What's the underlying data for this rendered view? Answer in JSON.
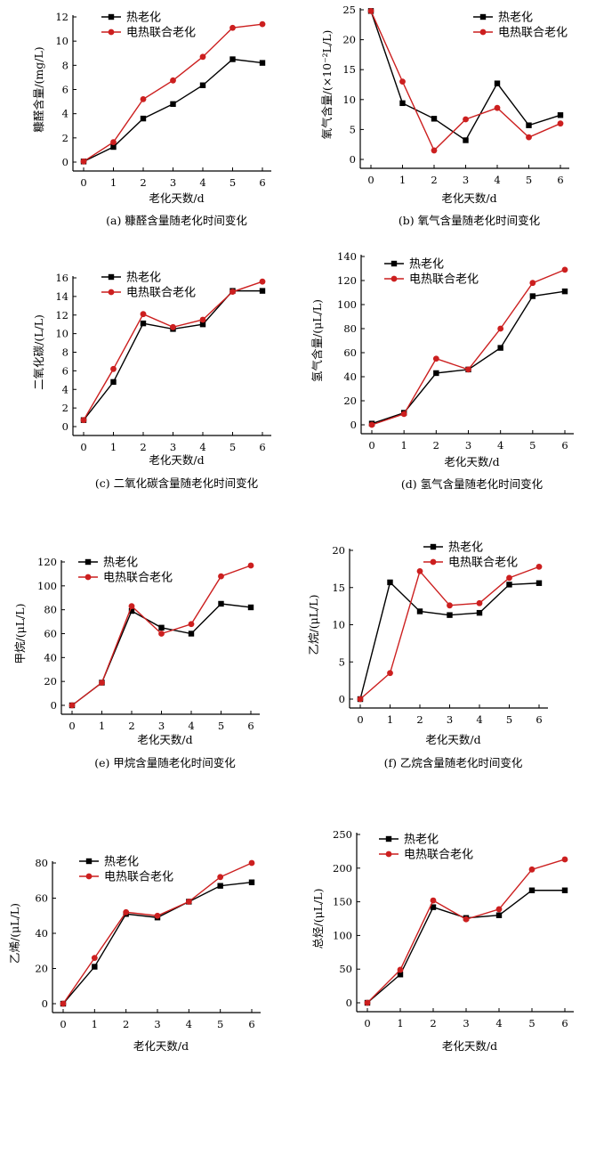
{
  "colors": {
    "heat": "#000000",
    "electro": "#cc1f1f"
  },
  "chart_data": [
    {
      "type": "line",
      "caption": "(a) 糠醛含量随老化时间变化",
      "xlabel": "老化天数/d",
      "ylabel": "糠醛含量/(mg/L)",
      "x": [
        0,
        1,
        2,
        3,
        4,
        5,
        6
      ],
      "xticks": [
        "0",
        "1",
        "2",
        "3",
        "4",
        "5",
        "6"
      ],
      "ylim": [
        0,
        12
      ],
      "yticks": [
        0,
        2,
        4,
        6,
        8,
        10,
        12
      ],
      "legend": "top-left",
      "series": [
        {
          "name": "热老化",
          "color": "#000000",
          "marker": "square",
          "values": [
            0.05,
            1.25,
            3.6,
            4.8,
            6.35,
            8.5,
            8.2
          ]
        },
        {
          "name": "电热联合老化",
          "color": "#cc1f1f",
          "marker": "circle",
          "values": [
            0.05,
            1.65,
            5.2,
            6.75,
            8.7,
            11.1,
            11.4
          ]
        }
      ]
    },
    {
      "type": "line",
      "caption": "(b) 氧气含量随老化时间变化",
      "xlabel": "老化天数/d",
      "ylabel": "氧气含量/(×10⁻²L/L)",
      "x": [
        0,
        1,
        2,
        3,
        4,
        5,
        6
      ],
      "xticks": [
        "0",
        "1",
        "2",
        "3",
        "4",
        "5",
        "6"
      ],
      "ylim": [
        0,
        25
      ],
      "yticks": [
        0,
        5,
        10,
        15,
        20,
        25
      ],
      "legend": "top-right",
      "series": [
        {
          "name": "热老化",
          "color": "#000000",
          "marker": "square",
          "values": [
            24.8,
            9.4,
            6.8,
            3.2,
            12.7,
            5.7,
            7.4
          ]
        },
        {
          "name": "电热联合老化",
          "color": "#cc1f1f",
          "marker": "circle",
          "values": [
            24.8,
            13.0,
            1.5,
            6.7,
            8.6,
            3.7,
            6.0
          ]
        }
      ]
    },
    {
      "type": "line",
      "caption": "(c) 二氧化碳含量随老化时间变化",
      "xlabel": "老化天数/d",
      "ylabel": "二氧化碳/(L/L)",
      "x": [
        0,
        1,
        2,
        3,
        4,
        5,
        6
      ],
      "xticks": [
        "0",
        "1",
        "2",
        "3",
        "4",
        "5",
        "6"
      ],
      "ylim": [
        0,
        16
      ],
      "yticks": [
        0,
        2,
        4,
        6,
        8,
        10,
        12,
        14,
        16
      ],
      "legend": "top-left",
      "series": [
        {
          "name": "热老化",
          "color": "#000000",
          "marker": "square",
          "values": [
            0.7,
            4.8,
            11.1,
            10.5,
            11.0,
            14.6,
            14.6
          ]
        },
        {
          "name": "电热联合老化",
          "color": "#cc1f1f",
          "marker": "circle",
          "values": [
            0.7,
            6.2,
            12.1,
            10.7,
            11.5,
            14.5,
            15.6
          ]
        }
      ]
    },
    {
      "type": "line",
      "caption": "(d) 氢气含量随老化时间变化",
      "xlabel": "老化天数/d",
      "ylabel": "氢气含量/(μL/L)",
      "x": [
        0,
        1,
        2,
        3,
        4,
        5,
        6
      ],
      "xticks": [
        "0",
        "1",
        "2",
        "3",
        "4",
        "5",
        "6"
      ],
      "ylim": [
        0,
        140
      ],
      "yticks": [
        0,
        20,
        40,
        60,
        80,
        100,
        120,
        140
      ],
      "legend": "top-left",
      "series": [
        {
          "name": "热老化",
          "color": "#000000",
          "marker": "square",
          "values": [
            1,
            10,
            43,
            46,
            64,
            107,
            111
          ]
        },
        {
          "name": "电热联合老化",
          "color": "#cc1f1f",
          "marker": "circle",
          "values": [
            0,
            9,
            55,
            46,
            80,
            118,
            129
          ]
        }
      ]
    },
    {
      "type": "line",
      "caption": "(e) 甲烷含量随老化时间变化",
      "xlabel": "老化天数/d",
      "ylabel": "甲烷/(μL/L)",
      "x": [
        0,
        1,
        2,
        3,
        4,
        5,
        6
      ],
      "xticks": [
        "0",
        "1",
        "2",
        "3",
        "4",
        "5",
        "6"
      ],
      "ylim": [
        0,
        120
      ],
      "yticks": [
        0,
        20,
        40,
        60,
        80,
        100,
        120
      ],
      "legend": "top-left",
      "series": [
        {
          "name": "热老化",
          "color": "#000000",
          "marker": "square",
          "values": [
            0,
            19,
            79,
            65,
            60,
            85,
            82
          ]
        },
        {
          "name": "电热联合老化",
          "color": "#cc1f1f",
          "marker": "circle",
          "values": [
            0,
            19,
            83,
            60,
            68,
            108,
            117
          ]
        }
      ]
    },
    {
      "type": "line",
      "caption": "(f) 乙烷含量随老化时间变化",
      "xlabel": "老化天数/d",
      "ylabel": "乙烷/(μL/L)",
      "x": [
        0,
        1,
        2,
        3,
        4,
        5,
        6
      ],
      "xticks": [
        "0",
        "1",
        "2",
        "3",
        "4",
        "5",
        "6"
      ],
      "ylim": [
        0,
        20
      ],
      "yticks": [
        0,
        5,
        10,
        15,
        20
      ],
      "legend": "top-right",
      "series": [
        {
          "name": "热老化",
          "color": "#000000",
          "marker": "square",
          "values": [
            0,
            15.7,
            11.8,
            11.3,
            11.6,
            15.4,
            15.6
          ]
        },
        {
          "name": "电热联合老化",
          "color": "#cc1f1f",
          "marker": "circle",
          "values": [
            0,
            3.5,
            17.2,
            12.6,
            12.9,
            16.3,
            17.8
          ]
        }
      ]
    },
    {
      "type": "line",
      "caption": "",
      "xlabel": "老化天数/d",
      "ylabel": "乙烯/(μL/L)",
      "x": [
        0,
        1,
        2,
        3,
        4,
        5,
        6
      ],
      "xticks": [
        "0",
        "1",
        "2",
        "3",
        "4",
        "5",
        "6"
      ],
      "ylim": [
        0,
        80
      ],
      "yticks": [
        0,
        20,
        40,
        60,
        80
      ],
      "legend": "top-left",
      "series": [
        {
          "name": "热老化",
          "color": "#000000",
          "marker": "square",
          "values": [
            0,
            21,
            51,
            49,
            58,
            67,
            69
          ]
        },
        {
          "name": "电热联合老化",
          "color": "#cc1f1f",
          "marker": "circle",
          "values": [
            0,
            26,
            52,
            50,
            58,
            72,
            80
          ]
        }
      ]
    },
    {
      "type": "line",
      "caption": "",
      "xlabel": "老化天数/d",
      "ylabel": "总烃/(μL/L)",
      "x": [
        0,
        1,
        2,
        3,
        4,
        5,
        6
      ],
      "xticks": [
        "0",
        "1",
        "2",
        "3",
        "4",
        "5",
        "6"
      ],
      "ylim": [
        0,
        250
      ],
      "yticks": [
        0,
        50,
        100,
        150,
        200,
        250
      ],
      "legend": "top-left",
      "series": [
        {
          "name": "热老化",
          "color": "#000000",
          "marker": "square",
          "values": [
            0,
            42,
            142,
            126,
            130,
            167,
            167
          ]
        },
        {
          "name": "电热联合老化",
          "color": "#cc1f1f",
          "marker": "circle",
          "values": [
            0,
            49,
            152,
            124,
            139,
            198,
            213
          ]
        }
      ]
    }
  ]
}
